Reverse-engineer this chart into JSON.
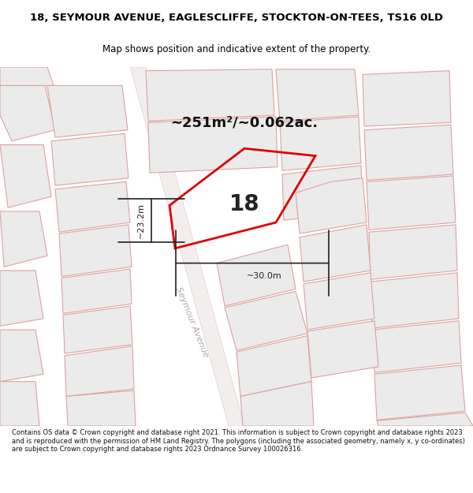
{
  "title_line1": "18, SEYMOUR AVENUE, EAGLESCLIFFE, STOCKTON-ON-TEES, TS16 0LD",
  "title_line2": "Map shows position and indicative extent of the property.",
  "area_text": "~251m²/~0.062ac.",
  "property_label": "18",
  "dim_vertical": "~23.2m",
  "dim_horizontal": "~30.0m",
  "road_label": "Seymour Avenue",
  "footer_text": "Contains OS data © Crown copyright and database right 2021. This information is subject to Crown copyright and database rights 2023 and is reproduced with the permission of HM Land Registry. The polygons (including the associated geometry, namely x, y co-ordinates) are subject to Crown copyright and database rights 2023 Ordnance Survey 100026316.",
  "bg_map": "#f8f5f5",
  "building_fill": "#e8e8e8",
  "building_edge": "#e0a0a0",
  "road_fill": "#f0ecec",
  "property_edge": "#dd0000",
  "dim_color": "#222222",
  "title_color": "#000000",
  "footer_color": "#111111"
}
